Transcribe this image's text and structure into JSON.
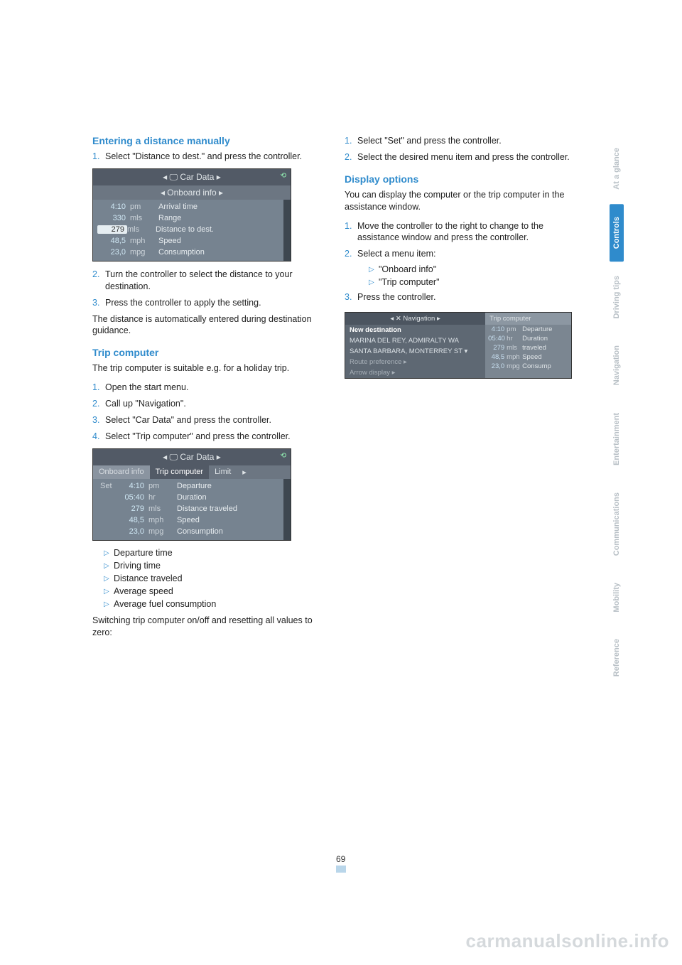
{
  "pageNumber": "69",
  "watermark": "carmanualsonline.info",
  "sideTabs": [
    "At a glance",
    "Controls",
    "Driving tips",
    "Navigation",
    "Entertainment",
    "Communications",
    "Mobility",
    "Reference"
  ],
  "sideActive": "Controls",
  "left": {
    "h1": "Entering a distance manually",
    "steps1": [
      {
        "n": "1.",
        "t": "Select \"Distance to dest.\" and press the controller."
      }
    ],
    "fig1": {
      "header": "◂  🖵  Car Data  ▸",
      "sub": "◂  Onboard info  ▸",
      "rows": [
        {
          "a": "4:10",
          "b": "pm",
          "c": "Arrival time"
        },
        {
          "a": "330",
          "b": "mls",
          "c": "Range"
        },
        {
          "a": "279",
          "b": "mls",
          "c": "Distance to dest.",
          "sel": true
        },
        {
          "a": "48,5",
          "b": "mph",
          "c": "Speed"
        },
        {
          "a": "23,0",
          "b": "mpg",
          "c": "Consumption"
        }
      ]
    },
    "steps1b": [
      {
        "n": "2.",
        "t": "Turn the controller to select the distance to your destination."
      },
      {
        "n": "3.",
        "t": "Press the controller to apply the setting."
      }
    ],
    "para1": "The distance is automatically entered during destination guidance.",
    "h2": "Trip computer",
    "para2": "The trip computer is suitable e.g. for a holiday trip.",
    "steps2": [
      {
        "n": "1.",
        "t": "Open the start menu."
      },
      {
        "n": "2.",
        "t": "Call up \"Navigation\"."
      },
      {
        "n": "3.",
        "t": "Select \"Car Data\" and press the controller."
      },
      {
        "n": "4.",
        "t": "Select \"Trip computer\" and press the controller."
      }
    ],
    "fig2": {
      "header": "◂  🖵  Car Data  ▸",
      "tabs": [
        "Onboard info",
        "Trip computer",
        "Limit"
      ],
      "activeTab": 1,
      "set": "Set",
      "rows": [
        {
          "a": "4:10",
          "b": "pm",
          "c": "Departure"
        },
        {
          "a": "05:40",
          "b": "hr",
          "c": "Duration"
        },
        {
          "a": "279",
          "b": "mls",
          "c": "Distance traveled"
        },
        {
          "a": "48,5",
          "b": "mph",
          "c": "Speed"
        },
        {
          "a": "23,0",
          "b": "mpg",
          "c": "Consumption"
        }
      ]
    },
    "bullets": [
      "Departure time",
      "Driving time",
      "Distance traveled",
      "Average speed",
      "Average fuel consumption"
    ],
    "para3": "Switching trip computer on/off and resetting all values to zero:"
  },
  "right": {
    "steps1": [
      {
        "n": "1.",
        "t": "Select \"Set\" and press the controller."
      },
      {
        "n": "2.",
        "t": "Select the desired menu item and press the controller."
      }
    ],
    "h1": "Display options",
    "para1": "You can display the computer or the trip computer in the assistance window.",
    "steps2": [
      {
        "n": "1.",
        "t": "Move the controller to the right to change to the assistance window and press the controller."
      },
      {
        "n": "2.",
        "t": "Select a menu item:"
      }
    ],
    "subbullets": [
      "\"Onboard info\"",
      "\"Trip computer\""
    ],
    "steps3": [
      {
        "n": "3.",
        "t": "Press the controller."
      }
    ],
    "fig3": {
      "leftHeader": "◂  ✕  Navigation  ▸",
      "rightHeader": "Trip computer",
      "leftLines": [
        {
          "t": "New destination",
          "b": true
        },
        {
          "t": "MARINA DEL REY, ADMIRALTY WA"
        },
        {
          "t": "SANTA BARBARA, MONTERREY ST  ▾"
        },
        {
          "t": "Route preference ▸",
          "dim": true
        },
        {
          "t": "Arrow display ▸",
          "dim": true
        }
      ],
      "rightRows": [
        {
          "a": "4:10",
          "b": "pm",
          "c": "Departure"
        },
        {
          "a": "05:40",
          "b": "hr",
          "c": "Duration"
        },
        {
          "a": "279",
          "b": "mls",
          "c": "traveled"
        },
        {
          "a": "48,5",
          "b": "mph",
          "c": "Speed"
        },
        {
          "a": "23,0",
          "b": "mpg",
          "c": "Consump"
        }
      ]
    }
  }
}
